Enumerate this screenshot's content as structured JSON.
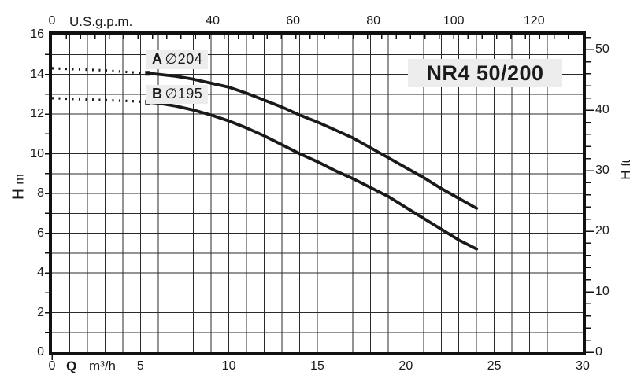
{
  "title": "NR4 50/200",
  "colors": {
    "line": "#1a1a1a",
    "grid": "#2a2a2a",
    "label_bg": "#ededed",
    "background": "#ffffff"
  },
  "chart_data": {
    "type": "line",
    "title": "NR4 50/200",
    "grid": {
      "x_step_m3h": 1,
      "y_step_m": 1,
      "visible": true
    },
    "x_axis_bottom": {
      "zero_label": "0",
      "symbol": "Q",
      "unit": "m³/h",
      "ticks": [
        0,
        5,
        10,
        15,
        20,
        25,
        30
      ],
      "range": [
        0,
        30
      ]
    },
    "x_axis_top": {
      "unit": "U.S.g.p.m.",
      "ticks": [
        0,
        40,
        60,
        80,
        100,
        120
      ],
      "range": [
        0,
        132.1
      ]
    },
    "y_axis_left": {
      "symbol": "H",
      "unit": "m",
      "ticks": [
        0,
        2,
        4,
        6,
        8,
        10,
        12,
        14,
        16
      ],
      "range": [
        0,
        16
      ]
    },
    "y_axis_right": {
      "symbol": "H",
      "unit": "ft",
      "ticks": [
        0,
        10,
        20,
        30,
        40,
        50
      ],
      "minor_step": 2,
      "range": [
        0,
        52.49
      ]
    },
    "series": [
      {
        "name": "A",
        "diameter": "∅204",
        "dotted_extension": [
          [
            0,
            14.3
          ],
          [
            1.5,
            14.25
          ],
          [
            3,
            14.2
          ],
          [
            4.5,
            14.1
          ],
          [
            5.4,
            14.05
          ]
        ],
        "points": [
          [
            5.4,
            14.05
          ],
          [
            6,
            14.0
          ],
          [
            7,
            13.9
          ],
          [
            8,
            13.75
          ],
          [
            9,
            13.55
          ],
          [
            10,
            13.35
          ],
          [
            11,
            13.05
          ],
          [
            12,
            12.7
          ],
          [
            13,
            12.35
          ],
          [
            14,
            11.95
          ],
          [
            15,
            11.6
          ],
          [
            16,
            11.2
          ],
          [
            17,
            10.8
          ],
          [
            18,
            10.3
          ],
          [
            19,
            9.8
          ],
          [
            20,
            9.3
          ],
          [
            21,
            8.8
          ],
          [
            22,
            8.25
          ],
          [
            23,
            7.75
          ],
          [
            24,
            7.25
          ]
        ]
      },
      {
        "name": "B",
        "diameter": "∅195",
        "dotted_extension": [
          [
            0,
            12.8
          ],
          [
            1.5,
            12.75
          ],
          [
            3,
            12.7
          ],
          [
            4.5,
            12.65
          ],
          [
            5.4,
            12.6
          ]
        ],
        "points": [
          [
            5.4,
            12.6
          ],
          [
            6,
            12.55
          ],
          [
            7,
            12.4
          ],
          [
            8,
            12.2
          ],
          [
            9,
            11.95
          ],
          [
            10,
            11.65
          ],
          [
            11,
            11.3
          ],
          [
            12,
            10.9
          ],
          [
            13,
            10.45
          ],
          [
            14,
            10.0
          ],
          [
            15,
            9.6
          ],
          [
            16,
            9.15
          ],
          [
            17,
            8.75
          ],
          [
            18,
            8.3
          ],
          [
            19,
            7.85
          ],
          [
            20,
            7.3
          ],
          [
            21,
            6.75
          ],
          [
            22,
            6.2
          ],
          [
            23,
            5.65
          ],
          [
            24,
            5.2
          ]
        ]
      }
    ]
  }
}
